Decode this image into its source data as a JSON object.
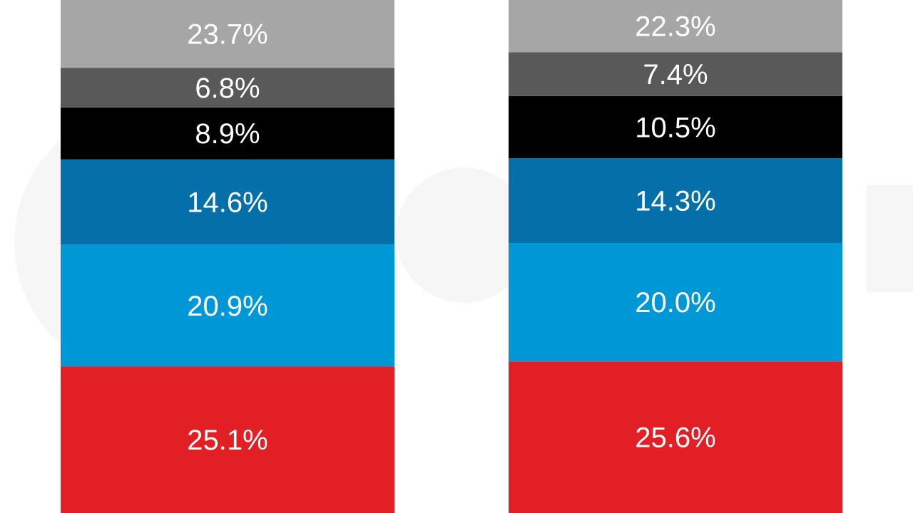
{
  "chart_data": {
    "type": "bar",
    "stacked": true,
    "colors": [
      "#e31f26",
      "#0097d6",
      "#046fa9",
      "#000000",
      "#595959",
      "#a6a6a6"
    ],
    "columns": [
      {
        "segments_bottom_to_top": [
          {
            "value": 25.1,
            "label": "25.1%"
          },
          {
            "value": 20.9,
            "label": "20.9%"
          },
          {
            "value": 14.6,
            "label": "14.6%"
          },
          {
            "value": 8.9,
            "label": "8.9%"
          },
          {
            "value": 6.8,
            "label": "6.8%"
          },
          {
            "value": 23.7,
            "label": "23.7%"
          }
        ]
      },
      {
        "segments_bottom_to_top": [
          {
            "value": 25.6,
            "label": "25.6%"
          },
          {
            "value": 20.0,
            "label": "20.0%"
          },
          {
            "value": 14.3,
            "label": "14.3%"
          },
          {
            "value": 10.5,
            "label": "10.5%"
          },
          {
            "value": 7.4,
            "label": "7.4%"
          },
          {
            "value": 22.3,
            "label": "22.3%"
          }
        ]
      }
    ],
    "grid": false,
    "legend": "none"
  }
}
